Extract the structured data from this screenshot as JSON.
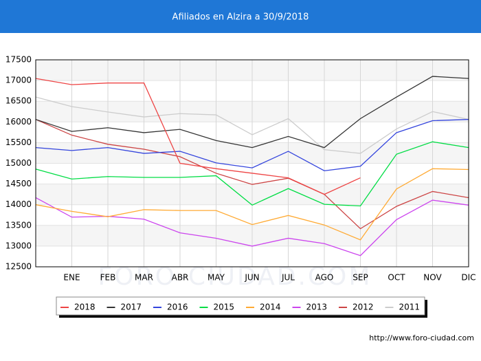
{
  "chart_data": {
    "type": "line",
    "title": "Afiliados en Alzira a 30/9/2018",
    "watermark": "FORO-CIUDAD.COM",
    "source": "http://www.foro-ciudad.com",
    "categories": [
      null,
      "ENE",
      "FEB",
      "MAR",
      "ABR",
      "MAY",
      "JUN",
      "JUL",
      "AGO",
      "SEP",
      "OCT",
      "NOV",
      "DIC"
    ],
    "ylim": [
      12500,
      17500
    ],
    "yticks": [
      12500,
      13000,
      13500,
      14000,
      14500,
      15000,
      15500,
      16000,
      16500,
      17000,
      17500
    ],
    "grid": true,
    "legend": "bottom",
    "series": [
      {
        "name": "2018",
        "color": "#ee4444",
        "values": [
          17050,
          16900,
          16940,
          16940,
          15000,
          14870,
          14760,
          14650,
          14250,
          14650,
          null,
          null,
          null
        ]
      },
      {
        "name": "2017",
        "color": "#333333",
        "values": [
          16060,
          15770,
          15860,
          15740,
          15820,
          15550,
          15380,
          15650,
          15380,
          16080,
          16600,
          17100,
          17050
        ]
      },
      {
        "name": "2016",
        "color": "#3344dd",
        "values": [
          15380,
          15310,
          15380,
          15240,
          15290,
          15010,
          14890,
          15290,
          14820,
          14930,
          15740,
          16030,
          16060
        ]
      },
      {
        "name": "2015",
        "color": "#00dd44",
        "values": [
          14860,
          14620,
          14680,
          14660,
          14660,
          14700,
          13990,
          14390,
          14010,
          13970,
          15220,
          15520,
          15380
        ]
      },
      {
        "name": "2014",
        "color": "#ffaa33",
        "values": [
          14000,
          13840,
          13710,
          13880,
          13860,
          13860,
          13520,
          13740,
          13510,
          13150,
          14380,
          14870,
          14850
        ]
      },
      {
        "name": "2013",
        "color": "#cc44ee",
        "values": [
          14170,
          13700,
          13720,
          13650,
          13320,
          13190,
          13000,
          13190,
          13060,
          12770,
          13640,
          14110,
          13990
        ]
      },
      {
        "name": "2012",
        "color": "#cc4444",
        "values": [
          16060,
          15680,
          15460,
          15340,
          15160,
          14760,
          14490,
          14640,
          14250,
          13420,
          13960,
          14320,
          14170
        ]
      },
      {
        "name": "2011",
        "color": "#cccccc",
        "values": [
          16600,
          16370,
          16240,
          16120,
          16200,
          16170,
          15690,
          16080,
          15330,
          15240,
          15830,
          16250,
          16060
        ]
      }
    ]
  }
}
